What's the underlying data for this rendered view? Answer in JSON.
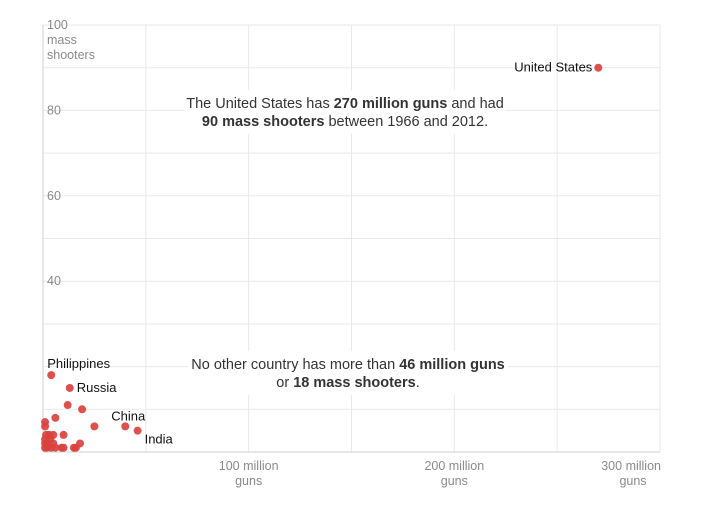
{
  "chart_data": {
    "type": "scatter",
    "title": "",
    "xlabel": "guns",
    "ylabel": "mass shooters",
    "xlim": [
      0,
      300000000
    ],
    "ylim": [
      0,
      100
    ],
    "grid": true,
    "x_ticks": [
      {
        "value": 100000000,
        "line1": "100 million",
        "line2": "guns"
      },
      {
        "value": 200000000,
        "line1": "200 million",
        "line2": "guns"
      },
      {
        "value": 300000000,
        "line1": "300 million",
        "line2": "guns"
      }
    ],
    "y_ticks": [
      {
        "value": 100,
        "label": "100"
      },
      {
        "value": 80,
        "label": "80"
      },
      {
        "value": 60,
        "label": "60"
      },
      {
        "value": 40,
        "label": "40"
      }
    ],
    "y_unit_lines": [
      "mass",
      "shooters"
    ],
    "point_color": "#d9413f",
    "points": [
      {
        "x": 270000000,
        "y": 90,
        "label": "United States"
      },
      {
        "x": 4000000,
        "y": 18,
        "label": "Philippines"
      },
      {
        "x": 13000000,
        "y": 15,
        "label": "Russia"
      },
      {
        "x": 40000000,
        "y": 6,
        "label": "China"
      },
      {
        "x": 46000000,
        "y": 5,
        "label": "India"
      },
      {
        "x": 12000000,
        "y": 11,
        "label": ""
      },
      {
        "x": 19000000,
        "y": 10,
        "label": ""
      },
      {
        "x": 6000000,
        "y": 8,
        "label": ""
      },
      {
        "x": 25000000,
        "y": 6,
        "label": ""
      },
      {
        "x": 1000000,
        "y": 7,
        "label": ""
      },
      {
        "x": 1000000,
        "y": 6,
        "label": ""
      },
      {
        "x": 1500000,
        "y": 4,
        "label": ""
      },
      {
        "x": 3000000,
        "y": 4,
        "label": ""
      },
      {
        "x": 3500000,
        "y": 3,
        "label": ""
      },
      {
        "x": 5000000,
        "y": 4,
        "label": ""
      },
      {
        "x": 10000000,
        "y": 4,
        "label": ""
      },
      {
        "x": 1000000,
        "y": 3,
        "label": ""
      },
      {
        "x": 1000000,
        "y": 2,
        "label": ""
      },
      {
        "x": 2000000,
        "y": 2,
        "label": ""
      },
      {
        "x": 2000000,
        "y": 1,
        "label": ""
      },
      {
        "x": 4000000,
        "y": 1,
        "label": ""
      },
      {
        "x": 5000000,
        "y": 2,
        "label": ""
      },
      {
        "x": 6000000,
        "y": 1,
        "label": ""
      },
      {
        "x": 9000000,
        "y": 1,
        "label": ""
      },
      {
        "x": 10000000,
        "y": 1,
        "label": ""
      },
      {
        "x": 15000000,
        "y": 1,
        "label": ""
      },
      {
        "x": 16000000,
        "y": 1,
        "label": ""
      },
      {
        "x": 18000000,
        "y": 2,
        "label": ""
      },
      {
        "x": 1000000,
        "y": 1,
        "label": ""
      }
    ],
    "annotations": [
      {
        "lines": [
          [
            {
              "text": "The United States has ",
              "bold": false
            },
            {
              "text": "270 million guns",
              "bold": true
            },
            {
              "text": " and had",
              "bold": false
            }
          ],
          [
            {
              "text": "90 mass shooters",
              "bold": true
            },
            {
              "text": " between 1966 and 2012.",
              "bold": false
            }
          ]
        ]
      },
      {
        "lines": [
          [
            {
              "text": "No other country has more than ",
              "bold": false
            },
            {
              "text": "46 million guns",
              "bold": true
            }
          ],
          [
            {
              "text": "or ",
              "bold": false
            },
            {
              "text": "18 mass shooters",
              "bold": true
            },
            {
              "text": ".",
              "bold": false
            }
          ]
        ]
      }
    ]
  }
}
